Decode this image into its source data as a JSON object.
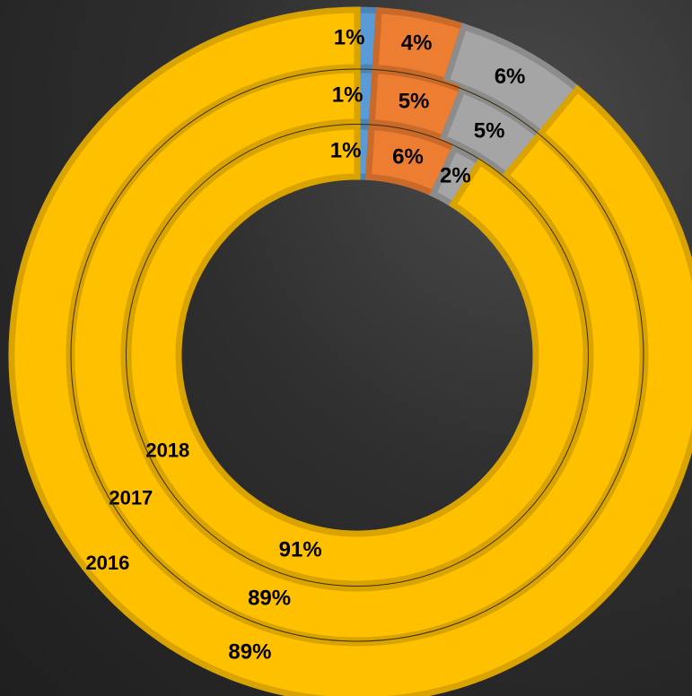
{
  "chart_data": {
    "type": "donut",
    "colors": [
      "#5b9bd5",
      "#ed7d31",
      "#a5a5a5",
      "#ffc000"
    ],
    "series": [
      {
        "name": "2016",
        "values": [
          1,
          4,
          6,
          89
        ],
        "value_labels": [
          "1%",
          "4%",
          "6%",
          "89%"
        ]
      },
      {
        "name": "2017",
        "values": [
          1,
          5,
          5,
          89
        ],
        "value_labels": [
          "1%",
          "5%",
          "5%",
          "89%"
        ]
      },
      {
        "name": "2018",
        "values": [
          1,
          6,
          2,
          91
        ],
        "value_labels": [
          "1%",
          "6%",
          "2%",
          "91%"
        ]
      }
    ]
  }
}
